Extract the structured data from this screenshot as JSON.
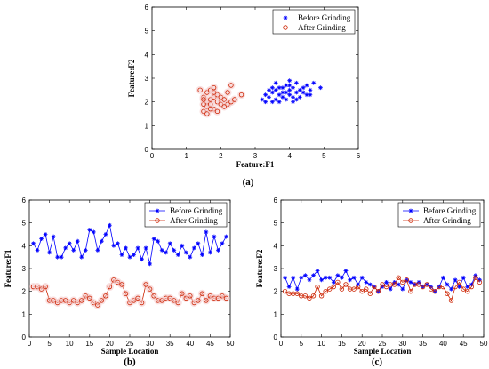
{
  "colors": {
    "before": "#0000ff",
    "after": "#cc2200",
    "glow": "#f4c6c6"
  },
  "chart_data": [
    {
      "panel": "(a)",
      "type": "scatter",
      "xlabel": "Feature:F1",
      "ylabel": "Feature:F2",
      "xlim": [
        0,
        6
      ],
      "ylim": [
        0,
        6
      ],
      "xticks": [
        0,
        1,
        2,
        3,
        4,
        5,
        6
      ],
      "yticks": [
        0,
        1,
        2,
        3,
        4,
        5,
        6
      ],
      "legend": [
        "Before Grinding",
        "After Grinding"
      ],
      "series": [
        {
          "name": "Before Grinding",
          "marker": "star",
          "points": [
            [
              3.2,
              2.1
            ],
            [
              3.3,
              2.3
            ],
            [
              3.4,
              2.2
            ],
            [
              3.5,
              2.0
            ],
            [
              3.5,
              2.4
            ],
            [
              3.6,
              2.1
            ],
            [
              3.6,
              2.5
            ],
            [
              3.7,
              2.3
            ],
            [
              3.7,
              2.0
            ],
            [
              3.8,
              2.6
            ],
            [
              3.8,
              2.2
            ],
            [
              3.9,
              2.4
            ],
            [
              3.9,
              2.1
            ],
            [
              4.0,
              2.5
            ],
            [
              4.0,
              2.3
            ],
            [
              4.0,
              2.9
            ],
            [
              4.1,
              2.2
            ],
            [
              4.1,
              2.6
            ],
            [
              4.2,
              2.4
            ],
            [
              4.2,
              2.8
            ],
            [
              4.3,
              2.5
            ],
            [
              4.3,
              2.2
            ],
            [
              4.4,
              2.6
            ],
            [
              4.4,
              2.4
            ],
            [
              4.5,
              2.7
            ],
            [
              4.6,
              2.5
            ],
            [
              4.7,
              2.8
            ],
            [
              3.6,
              2.8
            ],
            [
              3.5,
              2.6
            ],
            [
              3.9,
              2.7
            ],
            [
              3.4,
              2.5
            ],
            [
              4.1,
              2.0
            ],
            [
              4.5,
              2.3
            ],
            [
              4.9,
              2.6
            ],
            [
              3.8,
              2.4
            ],
            [
              4.2,
              2.1
            ],
            [
              3.7,
              2.6
            ],
            [
              4.0,
              2.7
            ],
            [
              3.3,
              2.0
            ],
            [
              4.6,
              2.3
            ]
          ]
        },
        {
          "name": "After Grinding",
          "marker": "circle",
          "points": [
            [
              1.5,
              1.6
            ],
            [
              1.6,
              1.8
            ],
            [
              1.6,
              2.0
            ],
            [
              1.7,
              1.9
            ],
            [
              1.7,
              2.1
            ],
            [
              1.8,
              1.7
            ],
            [
              1.8,
              2.2
            ],
            [
              1.9,
              2.0
            ],
            [
              1.9,
              2.3
            ],
            [
              1.5,
              2.2
            ],
            [
              1.6,
              2.4
            ],
            [
              1.7,
              2.5
            ],
            [
              1.8,
              2.4
            ],
            [
              2.0,
              1.9
            ],
            [
              2.0,
              2.2
            ],
            [
              2.1,
              2.1
            ],
            [
              2.2,
              1.9
            ],
            [
              2.3,
              2.0
            ],
            [
              2.4,
              2.1
            ],
            [
              2.2,
              2.4
            ],
            [
              2.3,
              2.7
            ],
            [
              2.6,
              2.3
            ],
            [
              1.4,
              2.5
            ],
            [
              1.5,
              1.9
            ],
            [
              1.6,
              1.5
            ],
            [
              1.7,
              1.7
            ],
            [
              1.9,
              1.6
            ],
            [
              1.8,
              2.6
            ],
            [
              2.1,
              1.8
            ],
            [
              1.5,
              2.1
            ]
          ]
        }
      ]
    },
    {
      "panel": "(b)",
      "type": "line",
      "xlabel": "Sample Location",
      "ylabel": "Feature:F1",
      "xlim": [
        0,
        50
      ],
      "ylim": [
        0,
        6
      ],
      "xticks": [
        0,
        5,
        10,
        15,
        20,
        25,
        30,
        35,
        40,
        45,
        50
      ],
      "yticks": [
        0,
        1,
        2,
        3,
        4,
        5,
        6
      ],
      "legend": [
        "Before Grinding",
        "After Grinding"
      ],
      "x_start": 1,
      "series": [
        {
          "name": "Before Grinding",
          "marker": "star",
          "values": [
            4.1,
            3.8,
            4.3,
            4.5,
            3.7,
            4.4,
            3.5,
            3.5,
            3.9,
            4.1,
            3.8,
            4.2,
            3.5,
            3.8,
            4.7,
            4.6,
            3.8,
            4.2,
            4.5,
            4.9,
            4.0,
            4.1,
            3.6,
            3.9,
            3.5,
            3.6,
            3.9,
            3.4,
            3.9,
            3.2,
            4.3,
            4.2,
            3.8,
            3.7,
            4.1,
            3.8,
            3.6,
            4.0,
            3.7,
            3.5,
            3.9,
            4.1,
            3.6,
            4.6,
            3.7,
            4.4,
            3.8,
            4.1,
            4.4
          ]
        },
        {
          "name": "After Grinding",
          "marker": "circle",
          "values": [
            2.2,
            2.2,
            2.1,
            2.2,
            1.6,
            1.6,
            1.5,
            1.6,
            1.6,
            1.5,
            1.6,
            1.5,
            1.6,
            1.8,
            1.7,
            1.5,
            1.4,
            1.6,
            1.8,
            2.2,
            2.5,
            2.4,
            2.3,
            1.9,
            1.5,
            1.6,
            1.7,
            1.5,
            2.3,
            2.1,
            1.8,
            1.6,
            1.6,
            1.7,
            1.7,
            1.6,
            1.5,
            1.9,
            1.7,
            1.8,
            1.5,
            1.6,
            1.9,
            1.6,
            1.8,
            1.7,
            1.7,
            1.8,
            1.7
          ]
        }
      ]
    },
    {
      "panel": "(c)",
      "type": "line",
      "xlabel": "Sample Location",
      "ylabel": "Feature:F2",
      "xlim": [
        0,
        50
      ],
      "ylim": [
        0,
        6
      ],
      "xticks": [
        0,
        5,
        10,
        15,
        20,
        25,
        30,
        35,
        40,
        45,
        50
      ],
      "yticks": [
        0,
        1,
        2,
        3,
        4,
        5,
        6
      ],
      "legend": [
        "Before Grinding",
        "After Grinding"
      ],
      "x_start": 1,
      "series": [
        {
          "name": "Before Grinding",
          "marker": "star",
          "values": [
            2.6,
            2.2,
            2.6,
            2.1,
            2.6,
            2.7,
            2.5,
            2.7,
            2.9,
            2.5,
            2.6,
            2.6,
            2.4,
            2.7,
            2.6,
            2.9,
            2.5,
            2.6,
            2.3,
            2.6,
            2.4,
            2.3,
            2.2,
            2.0,
            2.2,
            2.4,
            2.1,
            2.4,
            2.3,
            2.1,
            2.5,
            2.4,
            2.3,
            2.4,
            2.2,
            2.3,
            2.2,
            2.0,
            2.2,
            2.6,
            2.3,
            2.1,
            2.5,
            2.2,
            2.6,
            2.2,
            2.3,
            2.7,
            2.5
          ]
        },
        {
          "name": "After Grinding",
          "marker": "circle",
          "values": [
            2.0,
            1.9,
            1.9,
            1.9,
            1.8,
            1.8,
            1.7,
            1.8,
            2.2,
            1.8,
            2.0,
            2.1,
            2.2,
            2.4,
            2.1,
            2.3,
            2.1,
            2.1,
            2.2,
            2.0,
            2.1,
            1.9,
            2.2,
            2.0,
            2.3,
            2.2,
            2.3,
            2.3,
            2.6,
            2.4,
            2.5,
            2.0,
            2.3,
            2.3,
            2.2,
            2.3,
            2.1,
            2.0,
            2.2,
            2.2,
            1.9,
            1.6,
            2.2,
            2.4,
            2.1,
            2.0,
            2.2,
            2.6,
            2.4
          ]
        }
      ]
    }
  ]
}
